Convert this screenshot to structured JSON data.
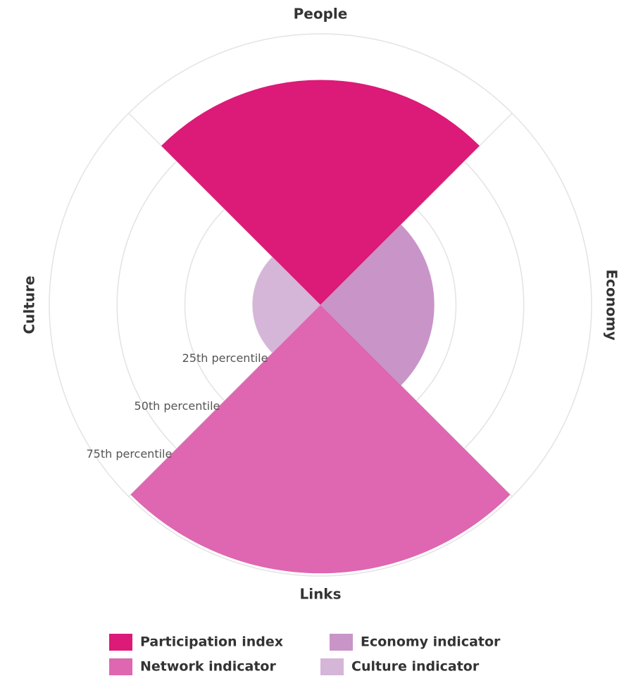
{
  "chart_data": {
    "type": "polar",
    "categories": [
      "People",
      "Economy",
      "Links",
      "Culture"
    ],
    "series": [
      {
        "name": "Participation index",
        "color": "#dc1a78",
        "values": [
          83,
          null,
          null,
          null
        ]
      },
      {
        "name": "Economy indicator",
        "color": "#c994c8",
        "values": [
          null,
          42,
          null,
          null
        ]
      },
      {
        "name": "Network indicator",
        "color": "#df66b0",
        "values": [
          null,
          null,
          99,
          null
        ]
      },
      {
        "name": "Culture indicator",
        "color": "#d5b5d8",
        "values": [
          null,
          null,
          null,
          25
        ]
      }
    ],
    "ylim": [
      0,
      100
    ],
    "yticks": [
      {
        "value": 25,
        "label": "25th percentile"
      },
      {
        "value": 50,
        "label": "50th percentile"
      },
      {
        "value": 75,
        "label": "75th percentile"
      }
    ],
    "grid": true
  }
}
